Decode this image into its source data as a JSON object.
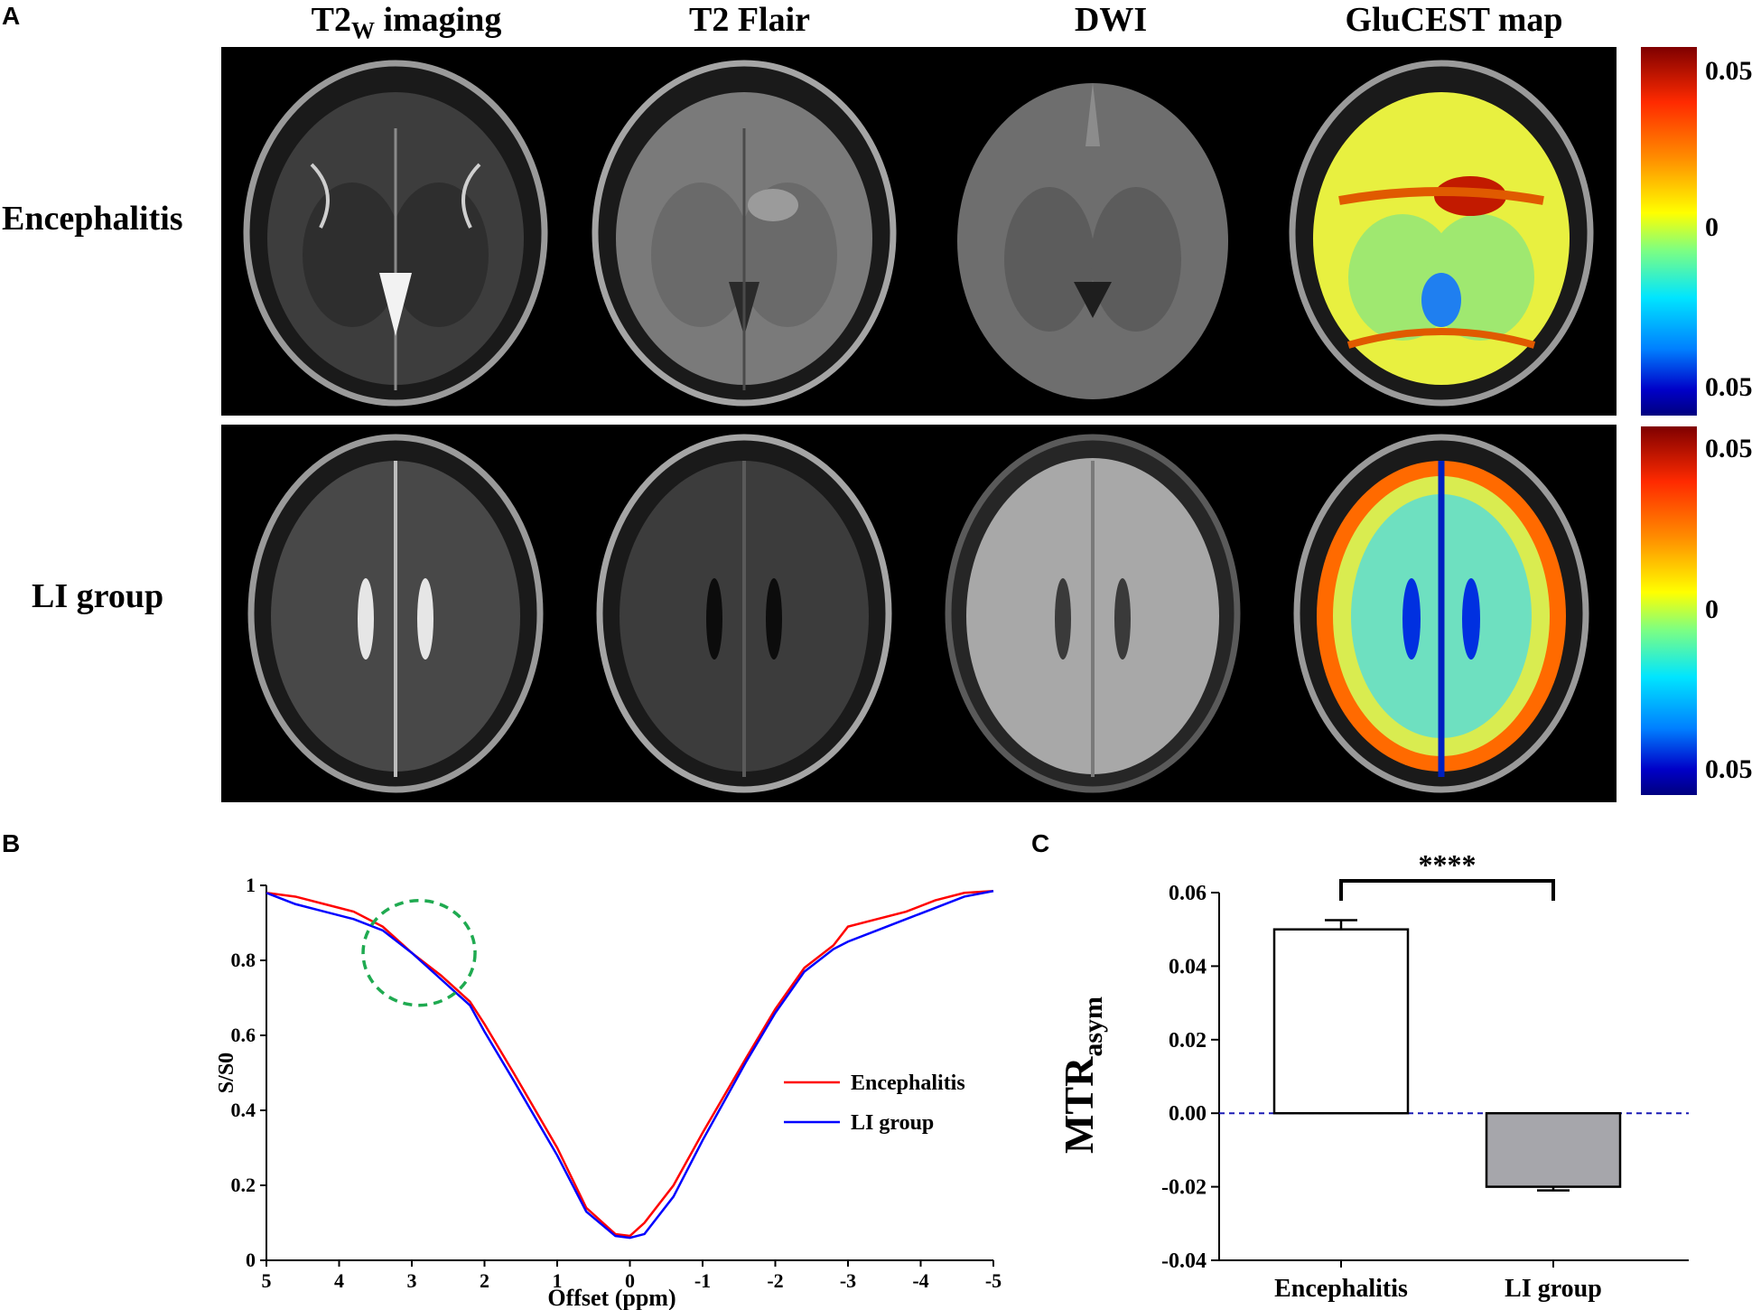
{
  "panels": {
    "a": "A",
    "b": "B",
    "c": "C"
  },
  "panel_a": {
    "columns": [
      {
        "main": "T2",
        "sub": "W",
        "rest": " imaging"
      },
      {
        "main": "T2 Flair",
        "sub": "",
        "rest": ""
      },
      {
        "main": "DWI",
        "sub": "",
        "rest": ""
      },
      {
        "main": "GluCEST map",
        "sub": "",
        "rest": ""
      }
    ],
    "rows": [
      "Encephalitis",
      "LI group"
    ],
    "colorbar_labels": [
      "0.05",
      "0",
      "0.05"
    ]
  },
  "chart_data": [
    {
      "type": "line",
      "panel": "B",
      "xlabel": "Offset (ppm)",
      "ylabel": "S/S0",
      "xlim": [
        5,
        -5
      ],
      "ylim": [
        0,
        1
      ],
      "x_ticks": [
        5,
        4,
        3,
        2,
        1,
        0,
        -1,
        -2,
        -3,
        -4,
        -5
      ],
      "y_ticks": [
        0,
        0.2,
        0.4,
        0.6,
        0.8,
        1
      ],
      "y_tick_labels": [
        "0",
        "0.2",
        "0.4",
        "0.6",
        "0.8",
        "1"
      ],
      "legend": "right",
      "annotation": "dashed green circle near 3 ppm",
      "series": [
        {
          "name": "Encephalitis",
          "color": "#ff0000",
          "x": [
            5,
            4.6,
            4.2,
            3.8,
            3.4,
            3.0,
            2.6,
            2.2,
            2.0,
            1.6,
            1.0,
            0.6,
            0.2,
            0,
            -0.2,
            -0.6,
            -1.0,
            -1.6,
            -2.0,
            -2.4,
            -2.8,
            -3.0,
            -3.4,
            -3.8,
            -4.2,
            -4.6,
            -5
          ],
          "y": [
            0.98,
            0.97,
            0.95,
            0.93,
            0.89,
            0.82,
            0.76,
            0.69,
            0.63,
            0.5,
            0.3,
            0.14,
            0.07,
            0.065,
            0.1,
            0.2,
            0.34,
            0.54,
            0.67,
            0.78,
            0.84,
            0.89,
            0.91,
            0.93,
            0.96,
            0.98,
            0.985
          ]
        },
        {
          "name": "LI group",
          "color": "#0000ff",
          "x": [
            5,
            4.6,
            4.2,
            3.8,
            3.4,
            3.0,
            2.6,
            2.2,
            2.0,
            1.6,
            1.0,
            0.6,
            0.2,
            0,
            -0.2,
            -0.6,
            -1.0,
            -1.6,
            -2.0,
            -2.4,
            -2.8,
            -3.0,
            -3.4,
            -3.8,
            -4.2,
            -4.6,
            -5
          ],
          "y": [
            0.98,
            0.95,
            0.93,
            0.91,
            0.88,
            0.82,
            0.75,
            0.68,
            0.61,
            0.48,
            0.28,
            0.13,
            0.065,
            0.06,
            0.07,
            0.17,
            0.32,
            0.53,
            0.66,
            0.77,
            0.83,
            0.85,
            0.88,
            0.91,
            0.94,
            0.97,
            0.985
          ]
        }
      ]
    },
    {
      "type": "bar",
      "panel": "C",
      "ylabel_main": "MTR",
      "ylabel_sub": "asym",
      "categories": [
        "Encephalitis",
        "LI group"
      ],
      "values": [
        0.05,
        -0.02
      ],
      "errors": [
        0.0025,
        0.001
      ],
      "colors": [
        "#ffffff",
        "#a6a6ab"
      ],
      "ylim": [
        -0.04,
        0.06
      ],
      "y_ticks": [
        -0.04,
        -0.02,
        0.0,
        0.02,
        0.04,
        0.06
      ],
      "y_tick_labels": [
        "-0.04",
        "-0.02",
        "0.00",
        "0.02",
        "0.04",
        "0.06"
      ],
      "reference_line": 0,
      "significance": "****"
    }
  ]
}
